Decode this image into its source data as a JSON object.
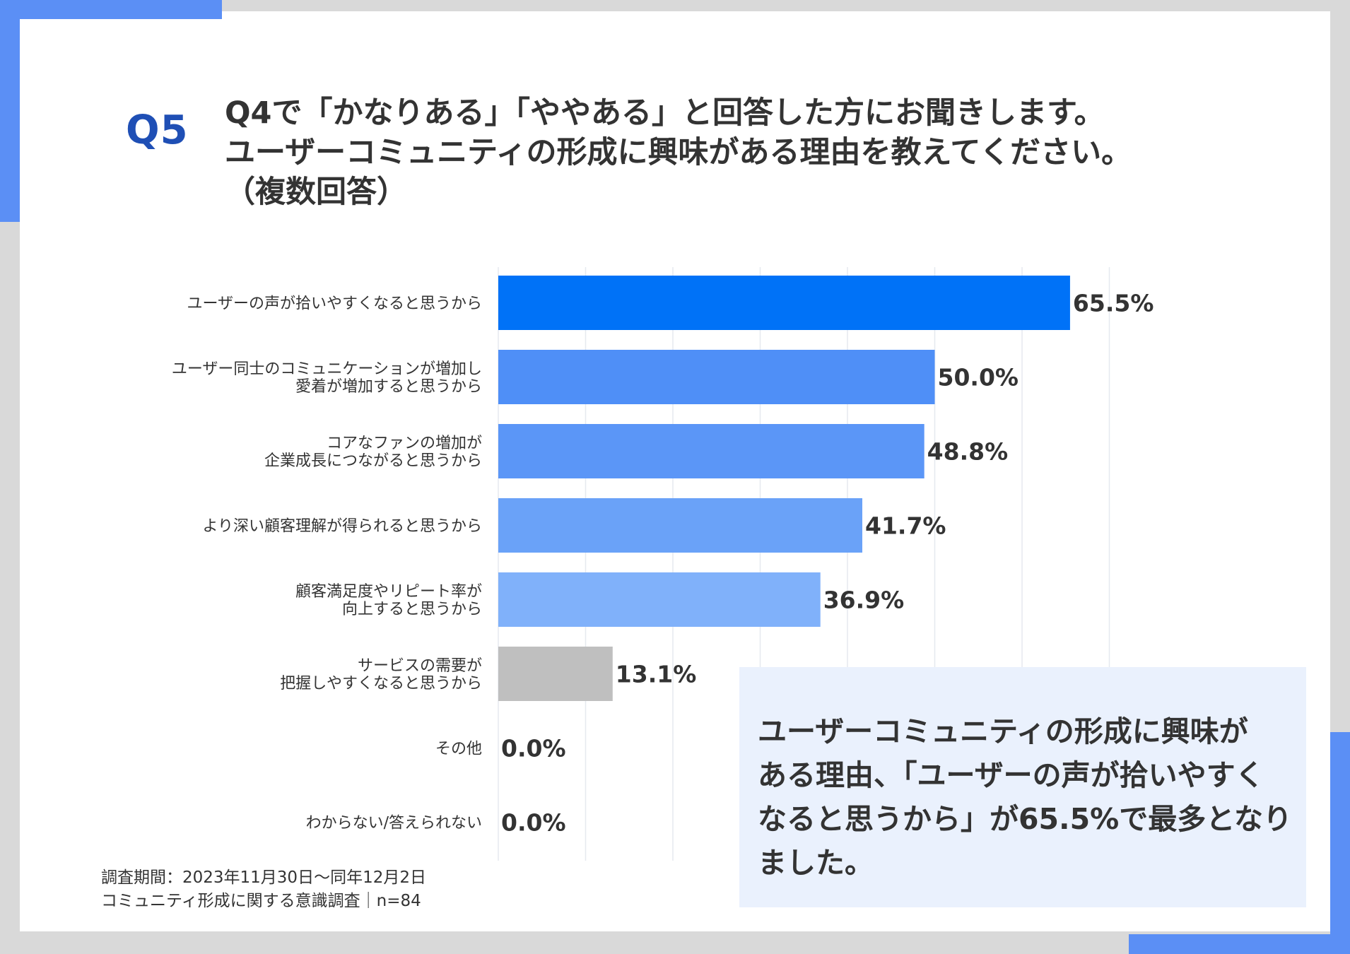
{
  "question": {
    "number": "Q5",
    "title_lines": [
      "Q4で「かなりある」「ややある」と回答した方にお聞きします。",
      "ユーザーコミュニティの形成に興味がある理由を教えてください。",
      "（複数回答）"
    ]
  },
  "chart_data": {
    "type": "bar",
    "orientation": "horizontal",
    "title": "",
    "xlabel": "",
    "ylabel": "",
    "xlim": [
      0,
      100
    ],
    "grid": true,
    "categories": [
      [
        "ユーザーの声が拾いやすくなると思うから"
      ],
      [
        "ユーザー同士のコミュニケーションが増加し",
        "愛着が増加すると思うから"
      ],
      [
        "コアなファンの増加が",
        "企業成長につながると思うから"
      ],
      [
        "より深い顧客理解が得られると思うから"
      ],
      [
        "顧客満足度やリピート率が",
        "向上すると思うから"
      ],
      [
        "サービスの需要が",
        "把握しやすくなると思うから"
      ],
      [
        "その他"
      ],
      [
        "わからない/答えられない"
      ]
    ],
    "values": [
      65.5,
      50.0,
      48.8,
      41.7,
      36.9,
      13.1,
      0.0,
      0.0
    ],
    "value_labels": [
      "65.5%",
      "50.0%",
      "48.8%",
      "41.7%",
      "36.9%",
      "13.1%",
      "0.0%",
      "0.0%"
    ],
    "bar_colors": [
      "#0072f7",
      "#4f8ff7",
      "#5b96f7",
      "#6aa2f8",
      "#80b1fa",
      "#bfbfbf",
      "#bfbfbf",
      "#bfbfbf"
    ],
    "gridline_color": "#e6e9ef"
  },
  "callout": {
    "lines": [
      "ユーザーコミュニティの形成に興味が",
      "ある理由、「ユーザーの声が拾いやすく",
      "なると思うから」が65.5%で最多となり",
      "ました。"
    ]
  },
  "footnote": {
    "period": "調査期間：2023年11月30日〜同年12月2日",
    "source": "コミュニティ形成に関する意識調査｜n=84"
  },
  "colors": {
    "accent": "#5b8ff5",
    "question_number": "#1f4fb5",
    "text": "#333333",
    "callout_bg": "#eaf1fd",
    "frame": "#d9d9d9"
  }
}
